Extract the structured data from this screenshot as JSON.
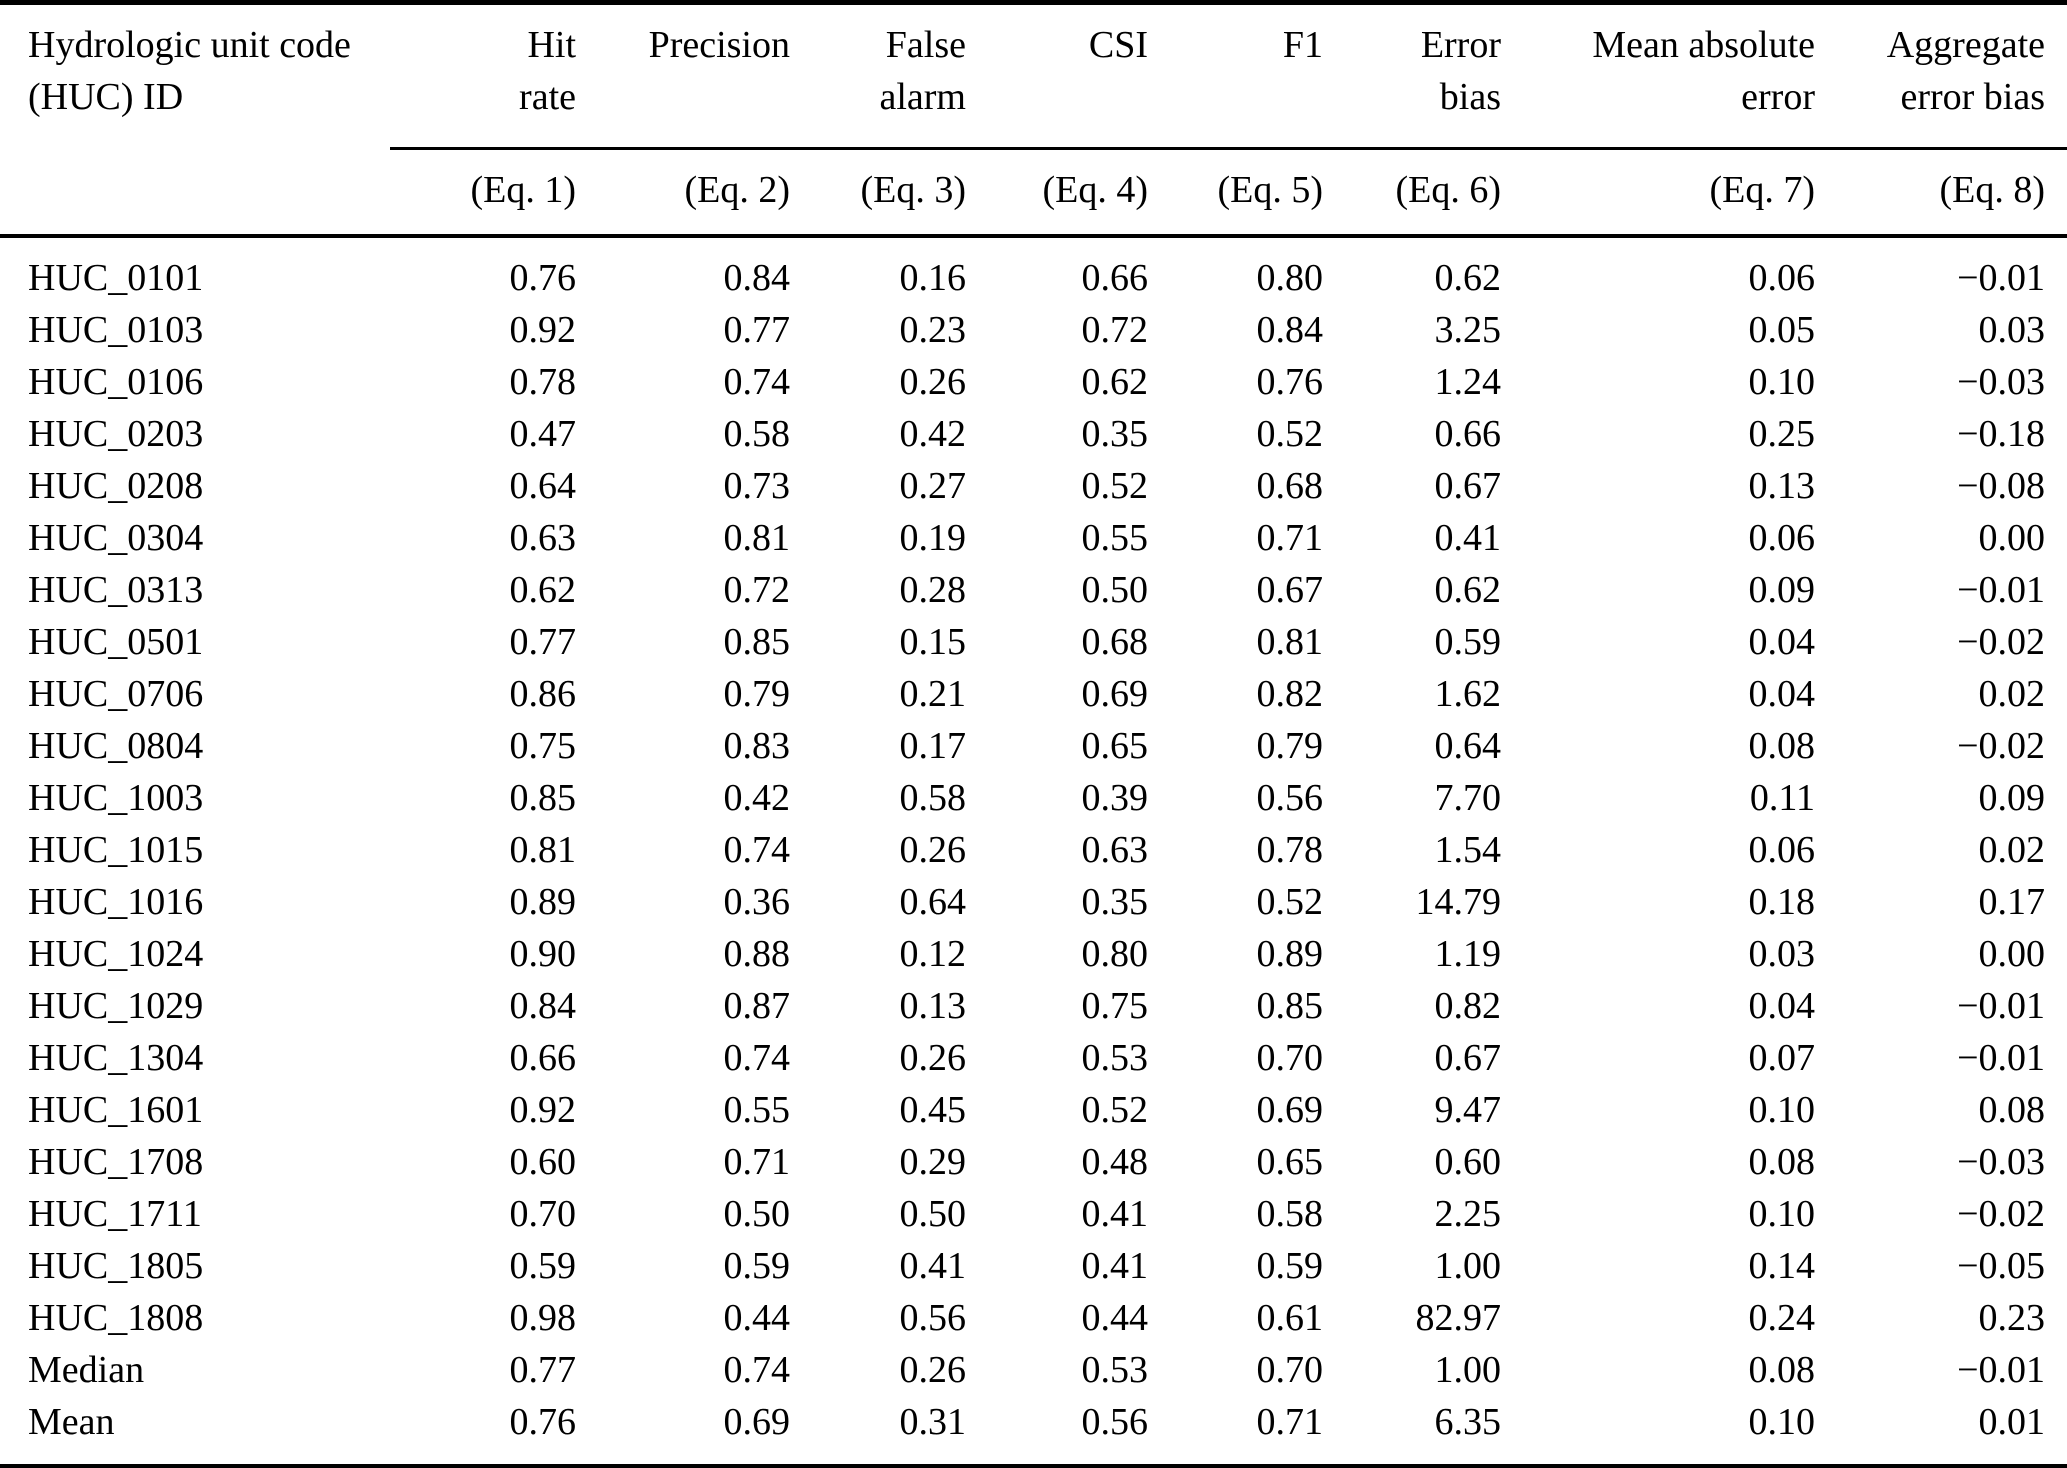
{
  "table": {
    "col1_header": [
      "Hydrologic unit code",
      "(HUC) ID"
    ],
    "columns": [
      {
        "label": [
          "Hit",
          "rate"
        ],
        "eq": "(Eq. 1)"
      },
      {
        "label": [
          "Precision",
          ""
        ],
        "eq": "(Eq. 2)"
      },
      {
        "label": [
          "False",
          "alarm"
        ],
        "eq": "(Eq. 3)"
      },
      {
        "label": [
          "CSI",
          ""
        ],
        "eq": "(Eq. 4)"
      },
      {
        "label": [
          "F1",
          ""
        ],
        "eq": "(Eq. 5)"
      },
      {
        "label": [
          "Error",
          "bias"
        ],
        "eq": "(Eq. 6)"
      },
      {
        "label": [
          "Mean absolute",
          "error"
        ],
        "eq": "(Eq. 7)"
      },
      {
        "label": [
          "Aggregate",
          "error bias"
        ],
        "eq": "(Eq. 8)"
      }
    ],
    "rows": [
      {
        "id": "HUC_0101",
        "values": [
          "0.76",
          "0.84",
          "0.16",
          "0.66",
          "0.80",
          "0.62",
          "0.06",
          "−0.01"
        ]
      },
      {
        "id": "HUC_0103",
        "values": [
          "0.92",
          "0.77",
          "0.23",
          "0.72",
          "0.84",
          "3.25",
          "0.05",
          "0.03"
        ]
      },
      {
        "id": "HUC_0106",
        "values": [
          "0.78",
          "0.74",
          "0.26",
          "0.62",
          "0.76",
          "1.24",
          "0.10",
          "−0.03"
        ]
      },
      {
        "id": "HUC_0203",
        "values": [
          "0.47",
          "0.58",
          "0.42",
          "0.35",
          "0.52",
          "0.66",
          "0.25",
          "−0.18"
        ]
      },
      {
        "id": "HUC_0208",
        "values": [
          "0.64",
          "0.73",
          "0.27",
          "0.52",
          "0.68",
          "0.67",
          "0.13",
          "−0.08"
        ]
      },
      {
        "id": "HUC_0304",
        "values": [
          "0.63",
          "0.81",
          "0.19",
          "0.55",
          "0.71",
          "0.41",
          "0.06",
          "0.00"
        ]
      },
      {
        "id": "HUC_0313",
        "values": [
          "0.62",
          "0.72",
          "0.28",
          "0.50",
          "0.67",
          "0.62",
          "0.09",
          "−0.01"
        ]
      },
      {
        "id": "HUC_0501",
        "values": [
          "0.77",
          "0.85",
          "0.15",
          "0.68",
          "0.81",
          "0.59",
          "0.04",
          "−0.02"
        ]
      },
      {
        "id": "HUC_0706",
        "values": [
          "0.86",
          "0.79",
          "0.21",
          "0.69",
          "0.82",
          "1.62",
          "0.04",
          "0.02"
        ]
      },
      {
        "id": "HUC_0804",
        "values": [
          "0.75",
          "0.83",
          "0.17",
          "0.65",
          "0.79",
          "0.64",
          "0.08",
          "−0.02"
        ]
      },
      {
        "id": "HUC_1003",
        "values": [
          "0.85",
          "0.42",
          "0.58",
          "0.39",
          "0.56",
          "7.70",
          "0.11",
          "0.09"
        ]
      },
      {
        "id": "HUC_1015",
        "values": [
          "0.81",
          "0.74",
          "0.26",
          "0.63",
          "0.78",
          "1.54",
          "0.06",
          "0.02"
        ]
      },
      {
        "id": "HUC_1016",
        "values": [
          "0.89",
          "0.36",
          "0.64",
          "0.35",
          "0.52",
          "14.79",
          "0.18",
          "0.17"
        ]
      },
      {
        "id": "HUC_1024",
        "values": [
          "0.90",
          "0.88",
          "0.12",
          "0.80",
          "0.89",
          "1.19",
          "0.03",
          "0.00"
        ]
      },
      {
        "id": "HUC_1029",
        "values": [
          "0.84",
          "0.87",
          "0.13",
          "0.75",
          "0.85",
          "0.82",
          "0.04",
          "−0.01"
        ]
      },
      {
        "id": "HUC_1304",
        "values": [
          "0.66",
          "0.74",
          "0.26",
          "0.53",
          "0.70",
          "0.67",
          "0.07",
          "−0.01"
        ]
      },
      {
        "id": "HUC_1601",
        "values": [
          "0.92",
          "0.55",
          "0.45",
          "0.52",
          "0.69",
          "9.47",
          "0.10",
          "0.08"
        ]
      },
      {
        "id": "HUC_1708",
        "values": [
          "0.60",
          "0.71",
          "0.29",
          "0.48",
          "0.65",
          "0.60",
          "0.08",
          "−0.03"
        ]
      },
      {
        "id": "HUC_1711",
        "values": [
          "0.70",
          "0.50",
          "0.50",
          "0.41",
          "0.58",
          "2.25",
          "0.10",
          "−0.02"
        ]
      },
      {
        "id": "HUC_1805",
        "values": [
          "0.59",
          "0.59",
          "0.41",
          "0.41",
          "0.59",
          "1.00",
          "0.14",
          "−0.05"
        ]
      },
      {
        "id": "HUC_1808",
        "values": [
          "0.98",
          "0.44",
          "0.56",
          "0.44",
          "0.61",
          "82.97",
          "0.24",
          "0.23"
        ]
      },
      {
        "id": "Median",
        "values": [
          "0.77",
          "0.74",
          "0.26",
          "0.53",
          "0.70",
          "1.00",
          "0.08",
          "−0.01"
        ]
      },
      {
        "id": "Mean",
        "values": [
          "0.76",
          "0.69",
          "0.31",
          "0.56",
          "0.71",
          "6.35",
          "0.10",
          "0.01"
        ]
      }
    ]
  }
}
